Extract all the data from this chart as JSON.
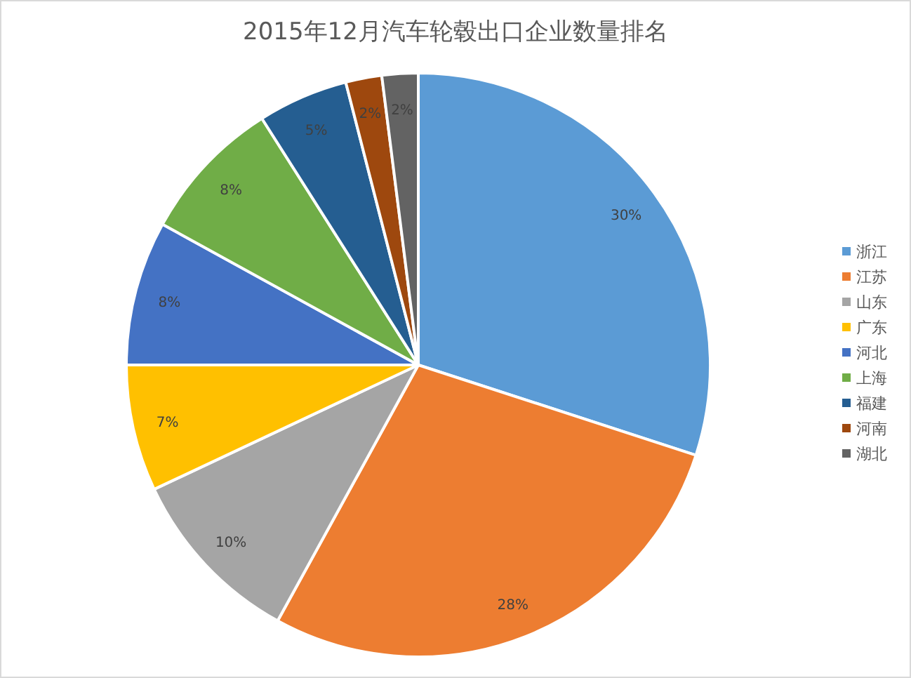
{
  "chart_data": {
    "type": "pie",
    "title": "2015年12月汽车轮毂出口企业数量排名",
    "categories": [
      "浙江",
      "江苏",
      "山东",
      "广东",
      "河北",
      "上海",
      "福建",
      "河南",
      "湖北"
    ],
    "values": [
      30,
      28,
      10,
      7,
      8,
      8,
      5,
      2,
      2
    ],
    "colors": [
      "#5b9bd5",
      "#ed7d31",
      "#a5a5a5",
      "#ffc000",
      "#4472c4",
      "#70ad47",
      "#255e91",
      "#9e480e",
      "#636363"
    ],
    "value_labels": [
      "30%",
      "28%",
      "10%",
      "7%",
      "8%",
      "8%",
      "5%",
      "2%",
      "2%"
    ],
    "legend": "right"
  }
}
